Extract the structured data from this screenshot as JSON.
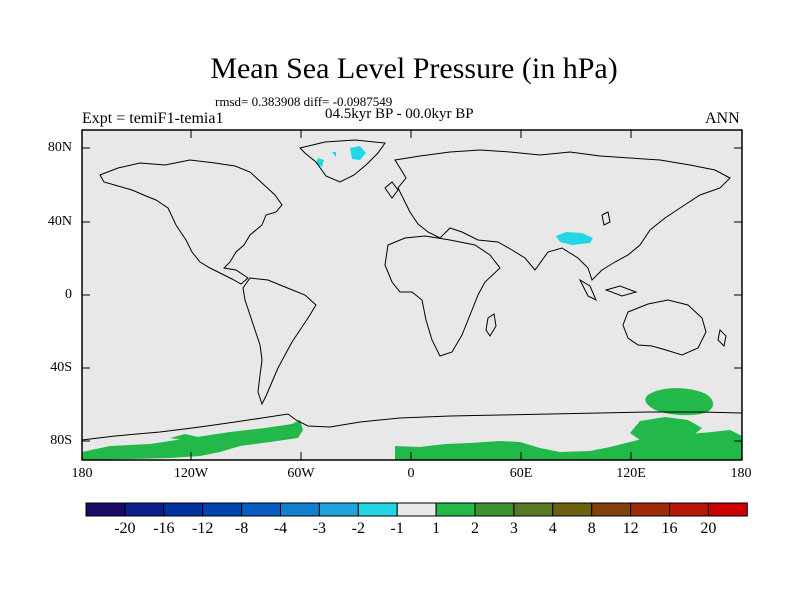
{
  "title": "Mean Sea Level Pressure (in hPa)",
  "stats": "rmsd= 0.383908 diff= -0.0987549",
  "period": "04.5kyr BP - 00.0kyr BP",
  "experiment": "Expt = temiF1-temia1",
  "season": "ANN",
  "lat_labels": [
    "80N",
    "40N",
    "0",
    "40S",
    "80S"
  ],
  "lon_labels": [
    "180",
    "120W",
    "60W",
    "0",
    "60E",
    "120E",
    "180"
  ],
  "colorbar": {
    "labels": [
      "-20",
      "-16",
      "-12",
      "-8",
      "-4",
      "-3",
      "-2",
      "-1",
      "1",
      "2",
      "3",
      "4",
      "8",
      "12",
      "16",
      "20"
    ],
    "colors": [
      "#1a0a66",
      "#0b1f8a",
      "#0033a0",
      "#0044b4",
      "#0a5cc4",
      "#1280d0",
      "#1ea6dc",
      "#22d6e6",
      "#e8e8e8",
      "#22b84a",
      "#3f9030",
      "#587826",
      "#6a6010",
      "#84400a",
      "#a02a0a",
      "#b81608",
      "#cc0000"
    ]
  },
  "colors": {
    "background": "#e8e8e8",
    "negative_anomaly": "#22d6e6",
    "positive_anomaly": "#22b84a",
    "coastline": "#000000"
  }
}
